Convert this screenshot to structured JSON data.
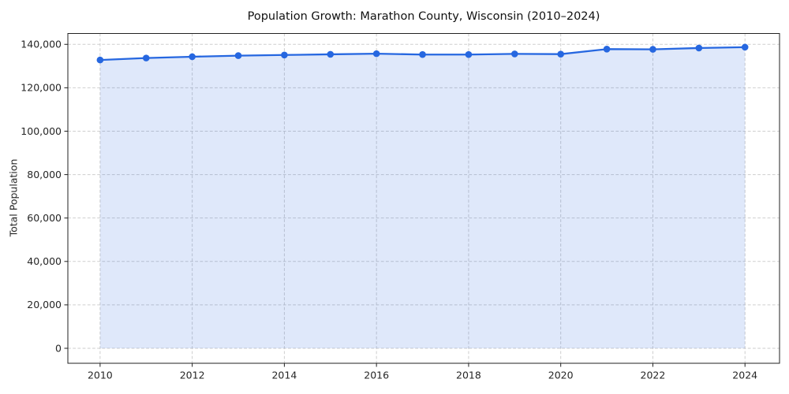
{
  "chart_data": {
    "type": "area",
    "title": "Population Growth: Marathon County, Wisconsin (2010–2024)",
    "xlabel": "",
    "ylabel": "Total Population",
    "x": [
      2010,
      2011,
      2012,
      2013,
      2014,
      2015,
      2016,
      2017,
      2018,
      2019,
      2020,
      2021,
      2022,
      2023,
      2024
    ],
    "series": [
      {
        "name": "Total Population",
        "values": [
          132800,
          133700,
          134300,
          134800,
          135100,
          135400,
          135700,
          135300,
          135300,
          135600,
          135500,
          137800,
          137700,
          138300,
          138700
        ]
      }
    ],
    "xlim": [
      2009.3,
      2024.75
    ],
    "ylim": [
      -6900,
      145000
    ],
    "x_ticks": [
      2010,
      2012,
      2014,
      2016,
      2018,
      2020,
      2022,
      2024
    ],
    "x_tick_labels": [
      "2010",
      "2012",
      "2014",
      "2016",
      "2018",
      "2020",
      "2022",
      "2024"
    ],
    "y_ticks": [
      0,
      20000,
      40000,
      60000,
      80000,
      100000,
      120000,
      140000
    ],
    "y_tick_labels": [
      "0",
      "20,000",
      "40,000",
      "60,000",
      "80,000",
      "100,000",
      "120,000",
      "140,000"
    ],
    "grid": "dashed-both-axes",
    "legend": "none",
    "baseline_value": 0,
    "colors": {
      "line": "#2667e0",
      "marker": "#2667e0",
      "area_fill": "rgba(38,103,224,0.15)",
      "grid": "#c9c9c9",
      "spine": "#222222",
      "tick_text": "#262626",
      "title_text": "#111111"
    }
  }
}
